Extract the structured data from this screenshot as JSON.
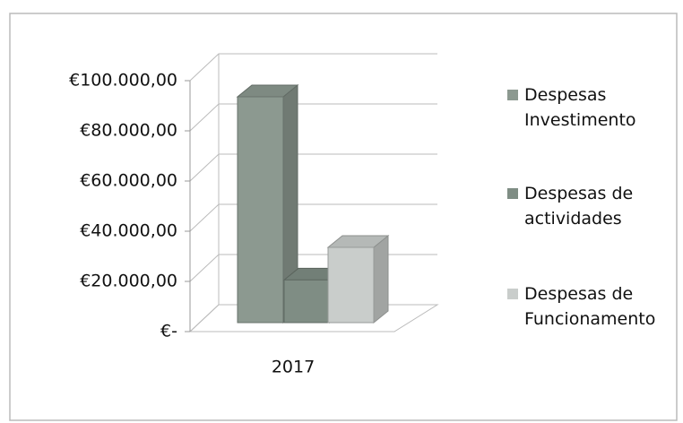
{
  "chart_data": {
    "type": "bar3d",
    "categories": [
      "2017"
    ],
    "series": [
      {
        "name": "Despesas Investimento",
        "color": "#8c9990",
        "values": [
          90000
        ]
      },
      {
        "name": "Despesas de actividades",
        "color": "#7f8d84",
        "values": [
          17000
        ]
      },
      {
        "name": "Despesas de Funcionamento",
        "color": "#c9cdcb",
        "values": [
          30000
        ]
      }
    ],
    "ylim": [
      0,
      100000
    ],
    "yticks": [
      {
        "value": 0,
        "label": "€-"
      },
      {
        "value": 20000,
        "label": "€20.000,00"
      },
      {
        "value": 40000,
        "label": "€40.000,00"
      },
      {
        "value": 60000,
        "label": "€60.000,00"
      },
      {
        "value": 80000,
        "label": "€80.000,00"
      },
      {
        "value": 100000,
        "label": "€100.000,00"
      }
    ],
    "grid": true,
    "legend": "right"
  }
}
